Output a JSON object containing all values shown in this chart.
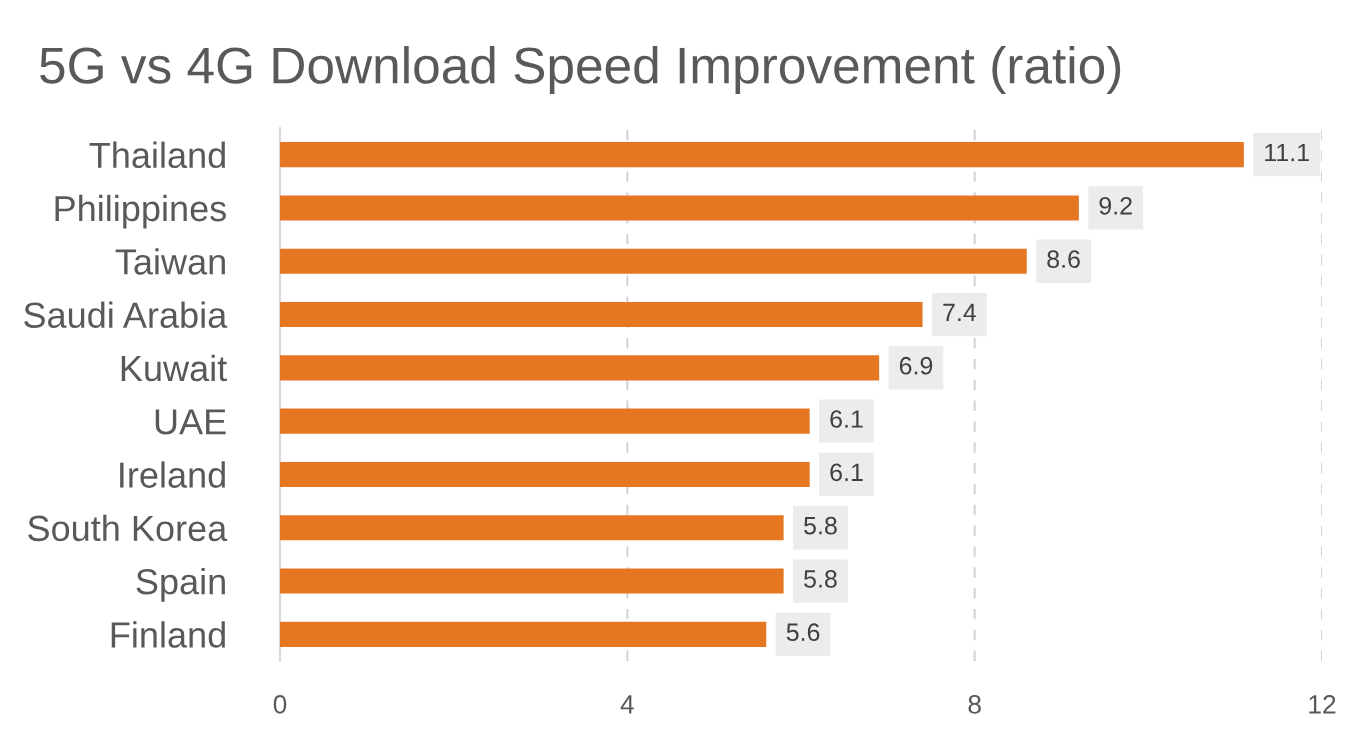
{
  "chart_data": {
    "type": "bar",
    "orientation": "horizontal",
    "title": "5G vs 4G Download Speed Improvement (ratio)",
    "categories": [
      "Thailand",
      "Philippines",
      "Taiwan",
      "Saudi Arabia",
      "Kuwait",
      "UAE",
      "Ireland",
      "South Korea",
      "Spain",
      "Finland"
    ],
    "values": [
      11.1,
      9.2,
      8.6,
      7.4,
      6.9,
      6.1,
      6.1,
      5.8,
      5.8,
      5.6
    ],
    "color": "#e57722",
    "xlim": [
      0,
      12
    ],
    "xticks": [
      0,
      4,
      8,
      12
    ],
    "grid": "x",
    "data_labels": true
  }
}
